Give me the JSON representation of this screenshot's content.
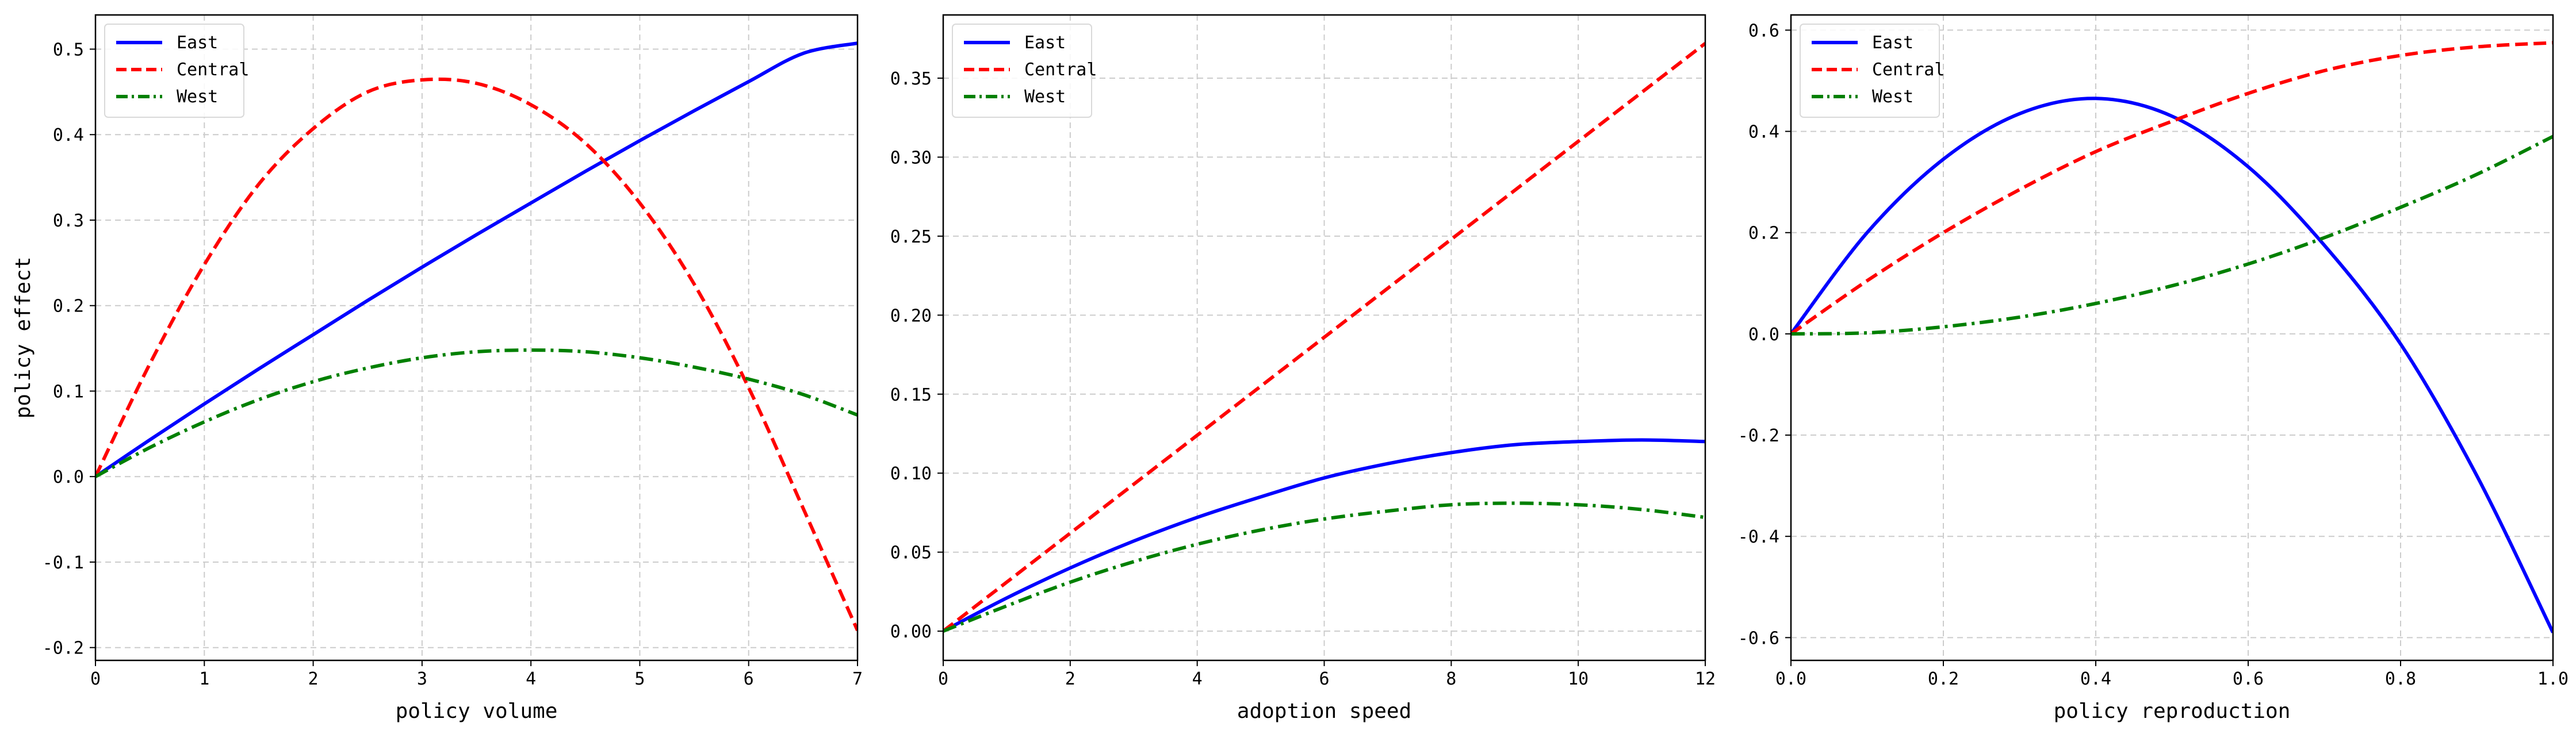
{
  "chart_data": [
    {
      "type": "line",
      "xlabel": "policy volume",
      "ylabel": "policy effect",
      "xlim": [
        0,
        7
      ],
      "ylim": [
        -0.215,
        0.54
      ],
      "xticks": [
        0,
        1,
        2,
        3,
        4,
        5,
        6,
        7
      ],
      "xtick_labels": [
        "0",
        "1",
        "2",
        "3",
        "4",
        "5",
        "6",
        "7"
      ],
      "yticks": [
        -0.2,
        -0.1,
        0.0,
        0.1,
        0.2,
        0.3,
        0.4,
        0.5
      ],
      "ytick_labels": [
        "-0.2",
        "-0.1",
        "0.0",
        "0.1",
        "0.2",
        "0.3",
        "0.4",
        "0.5"
      ],
      "grid": true,
      "legend_position": "top-left",
      "x": [
        0,
        0.5,
        1,
        1.5,
        2,
        2.5,
        3,
        3.5,
        4,
        4.5,
        5,
        5.5,
        6,
        6.5,
        7
      ],
      "series": [
        {
          "name": "East",
          "color": "#0000ff",
          "style": "solid",
          "values": [
            0,
            0.043,
            0.085,
            0.126,
            0.166,
            0.206,
            0.245,
            0.283,
            0.32,
            0.357,
            0.393,
            0.428,
            0.462,
            0.495,
            0.507
          ]
        },
        {
          "name": "Central",
          "color": "#ff0000",
          "style": "dashed",
          "values": [
            0,
            0.132,
            0.248,
            0.342,
            0.407,
            0.45,
            0.464,
            0.46,
            0.435,
            0.39,
            0.32,
            0.225,
            0.104,
            -0.037,
            -0.18
          ]
        },
        {
          "name": "West",
          "color": "#008000",
          "style": "dashdot",
          "values": [
            0,
            0.034,
            0.064,
            0.09,
            0.111,
            0.127,
            0.139,
            0.146,
            0.148,
            0.146,
            0.139,
            0.128,
            0.114,
            0.096,
            0.072
          ]
        }
      ]
    },
    {
      "type": "line",
      "xlabel": "adoption speed",
      "ylabel": "",
      "xlim": [
        0,
        12
      ],
      "ylim": [
        -0.0185,
        0.39
      ],
      "xticks": [
        0,
        2,
        4,
        6,
        8,
        10,
        12
      ],
      "xtick_labels": [
        "0",
        "2",
        "4",
        "6",
        "8",
        "10",
        "12"
      ],
      "yticks": [
        0.0,
        0.05,
        0.1,
        0.15,
        0.2,
        0.25,
        0.3,
        0.35
      ],
      "ytick_labels": [
        "0.00",
        "0.05",
        "0.10",
        "0.15",
        "0.20",
        "0.25",
        "0.30",
        "0.35"
      ],
      "grid": true,
      "legend_position": "top-left",
      "x": [
        0,
        1,
        2,
        3,
        4,
        5,
        6,
        7,
        8,
        9,
        10,
        11,
        12
      ],
      "series": [
        {
          "name": "East",
          "color": "#0000ff",
          "style": "solid",
          "values": [
            0,
            0.021,
            0.04,
            0.057,
            0.072,
            0.085,
            0.097,
            0.106,
            0.113,
            0.118,
            0.12,
            0.121,
            0.12
          ]
        },
        {
          "name": "Central",
          "color": "#ff0000",
          "style": "dashed",
          "values": [
            0,
            0.031,
            0.062,
            0.093,
            0.124,
            0.155,
            0.186,
            0.217,
            0.248,
            0.279,
            0.31,
            0.341,
            0.372
          ]
        },
        {
          "name": "West",
          "color": "#008000",
          "style": "dashdot",
          "values": [
            0,
            0.016,
            0.031,
            0.044,
            0.055,
            0.064,
            0.071,
            0.076,
            0.08,
            0.081,
            0.08,
            0.077,
            0.072
          ]
        }
      ]
    },
    {
      "type": "line",
      "xlabel": "policy reproduction",
      "ylabel": "",
      "xlim": [
        0,
        1
      ],
      "ylim": [
        -0.645,
        0.63
      ],
      "xticks": [
        0,
        0.2,
        0.4,
        0.6,
        0.8,
        1.0
      ],
      "xtick_labels": [
        "0.0",
        "0.2",
        "0.4",
        "0.6",
        "0.8",
        "1.0"
      ],
      "yticks": [
        -0.6,
        -0.4,
        -0.2,
        0.0,
        0.2,
        0.4,
        0.6
      ],
      "ytick_labels": [
        "-0.6",
        "-0.4",
        "-0.2",
        "0.0",
        "0.2",
        "0.4",
        "0.6"
      ],
      "grid": true,
      "legend_position": "top-left",
      "x": [
        0,
        0.1,
        0.2,
        0.3,
        0.4,
        0.5,
        0.6,
        0.7,
        0.8,
        0.9,
        1.0
      ],
      "series": [
        {
          "name": "East",
          "color": "#0000ff",
          "style": "solid",
          "values": [
            0,
            0.2,
            0.345,
            0.435,
            0.465,
            0.43,
            0.33,
            0.175,
            -0.02,
            -0.28,
            -0.59
          ]
        },
        {
          "name": "Central",
          "color": "#ff0000",
          "style": "dashed",
          "values": [
            0,
            0.105,
            0.2,
            0.285,
            0.36,
            0.42,
            0.475,
            0.52,
            0.55,
            0.567,
            0.575
          ]
        },
        {
          "name": "West",
          "color": "#008000",
          "style": "dashdot",
          "values": [
            0,
            0.002,
            0.014,
            0.033,
            0.06,
            0.095,
            0.138,
            0.19,
            0.25,
            0.315,
            0.39
          ]
        }
      ]
    }
  ]
}
